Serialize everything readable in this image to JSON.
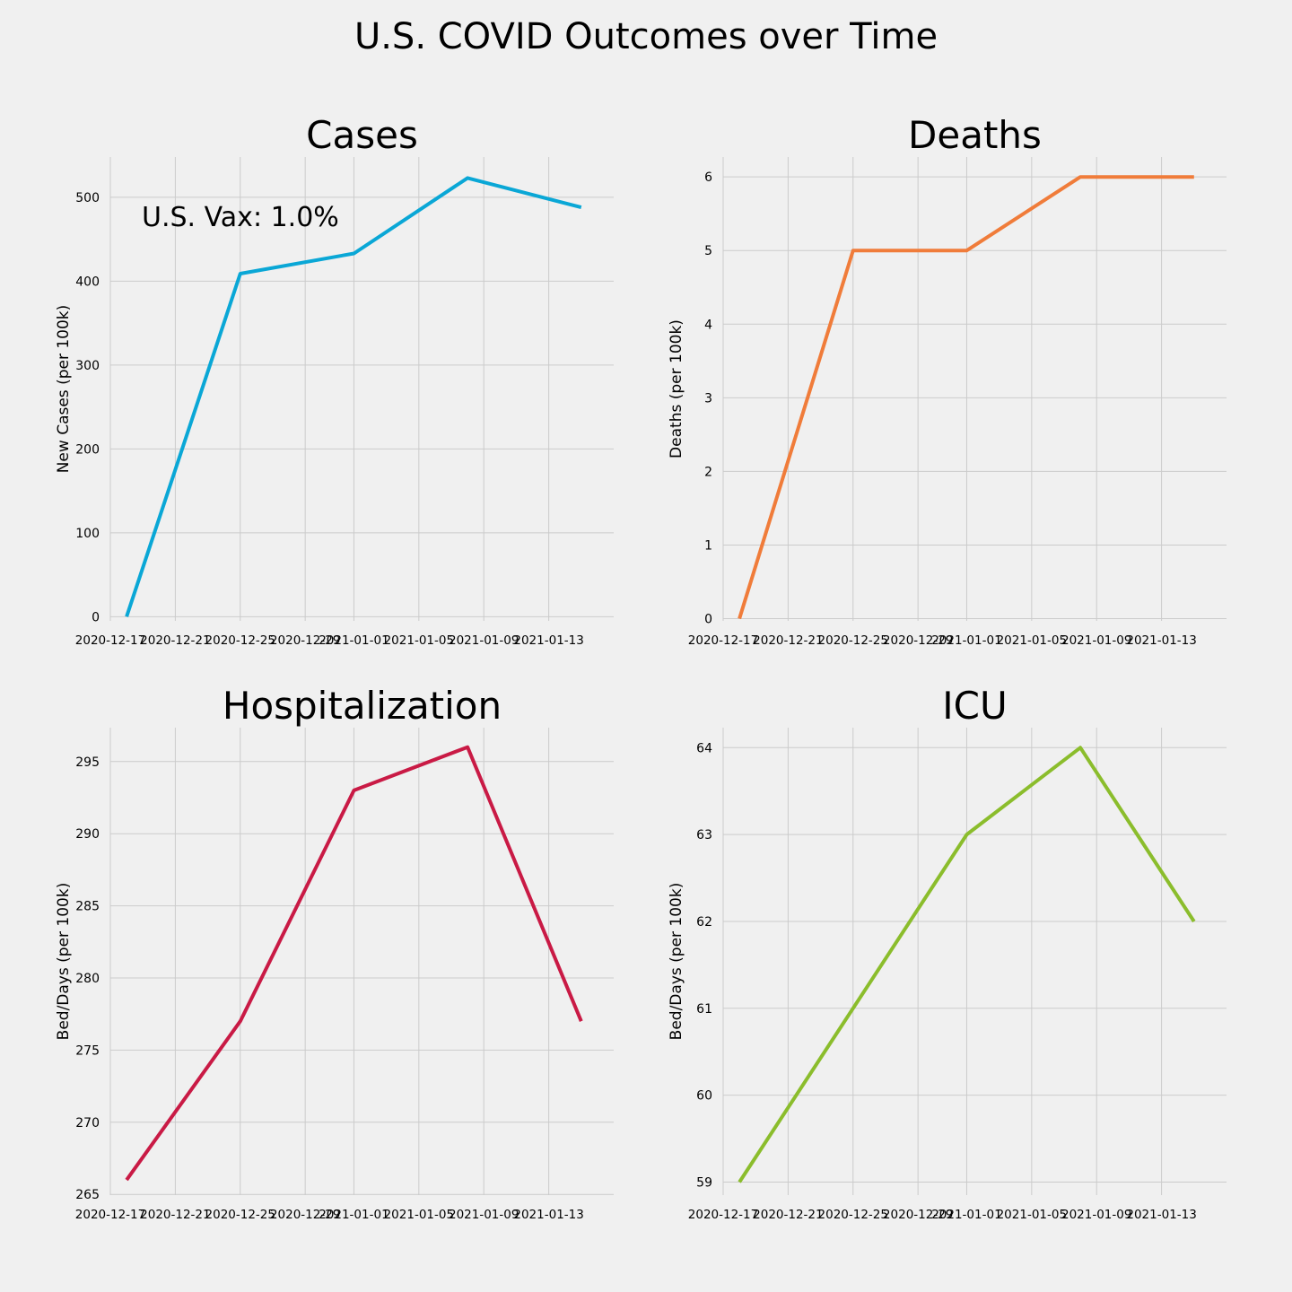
{
  "figure": {
    "title": "U.S. COVID Outcomes over Time"
  },
  "chart_data": [
    {
      "type": "line",
      "title": "Cases",
      "xlabel": "",
      "ylabel": "New Cases (per 100k)",
      "color": "#0aa7d6",
      "x": [
        "2020-12-18",
        "2020-12-25",
        "2021-01-01",
        "2021-01-08",
        "2021-01-15"
      ],
      "y": [
        0,
        409,
        433,
        523,
        488
      ],
      "xlim": [
        "2020-12-17",
        "2021-01-17"
      ],
      "ylim": [
        -5,
        548
      ],
      "xticks": [
        "2020-12-17",
        "2020-12-21",
        "2020-12-25",
        "2020-12-29",
        "2021-01-01",
        "2021-01-05",
        "2021-01-09",
        "2021-01-13"
      ],
      "yticks": [
        0,
        100,
        200,
        300,
        400,
        500
      ],
      "annotation": "U.S. Vax: 1.0%",
      "grid": true
    },
    {
      "type": "line",
      "title": "Deaths",
      "xlabel": "",
      "ylabel": "Deaths (per 100k)",
      "color": "#f07c3a",
      "x": [
        "2020-12-18",
        "2020-12-25",
        "2021-01-01",
        "2021-01-08",
        "2021-01-15"
      ],
      "y": [
        0,
        5,
        5,
        6,
        6
      ],
      "xlim": [
        "2020-12-17",
        "2021-01-17"
      ],
      "ylim": [
        -0.03,
        6.27
      ],
      "xticks": [
        "2020-12-17",
        "2020-12-21",
        "2020-12-25",
        "2020-12-29",
        "2021-01-01",
        "2021-01-05",
        "2021-01-09",
        "2021-01-13"
      ],
      "yticks": [
        0,
        1,
        2,
        3,
        4,
        5,
        6
      ],
      "grid": true
    },
    {
      "type": "line",
      "title": "Hospitalization",
      "xlabel": "",
      "ylabel": "Bed/Days (per 100k)",
      "color": "#c91a45",
      "x": [
        "2020-12-18",
        "2020-12-25",
        "2021-01-01",
        "2021-01-08",
        "2021-01-15"
      ],
      "y": [
        266,
        277,
        293,
        296,
        277
      ],
      "xlim": [
        "2020-12-17",
        "2021-01-17"
      ],
      "ylim": [
        264.95,
        297.35
      ],
      "xticks": [
        "2020-12-17",
        "2020-12-21",
        "2020-12-25",
        "2020-12-29",
        "2021-01-01",
        "2021-01-05",
        "2021-01-09",
        "2021-01-13"
      ],
      "yticks": [
        265,
        270,
        275,
        280,
        285,
        290,
        295
      ],
      "grid": true
    },
    {
      "type": "line",
      "title": "ICU",
      "xlabel": "",
      "ylabel": "Bed/Days (per 100k)",
      "color": "#8bbd2c",
      "x": [
        "2020-12-18",
        "2020-12-25",
        "2021-01-01",
        "2021-01-08",
        "2021-01-15"
      ],
      "y": [
        59,
        61,
        63,
        64,
        62
      ],
      "xlim": [
        "2020-12-17",
        "2021-01-17"
      ],
      "ylim": [
        58.85,
        64.23
      ],
      "xticks": [
        "2020-12-17",
        "2020-12-21",
        "2020-12-25",
        "2020-12-29",
        "2021-01-01",
        "2021-01-05",
        "2021-01-09",
        "2021-01-13"
      ],
      "yticks": [
        59,
        60,
        61,
        62,
        63,
        64
      ],
      "grid": true
    }
  ]
}
